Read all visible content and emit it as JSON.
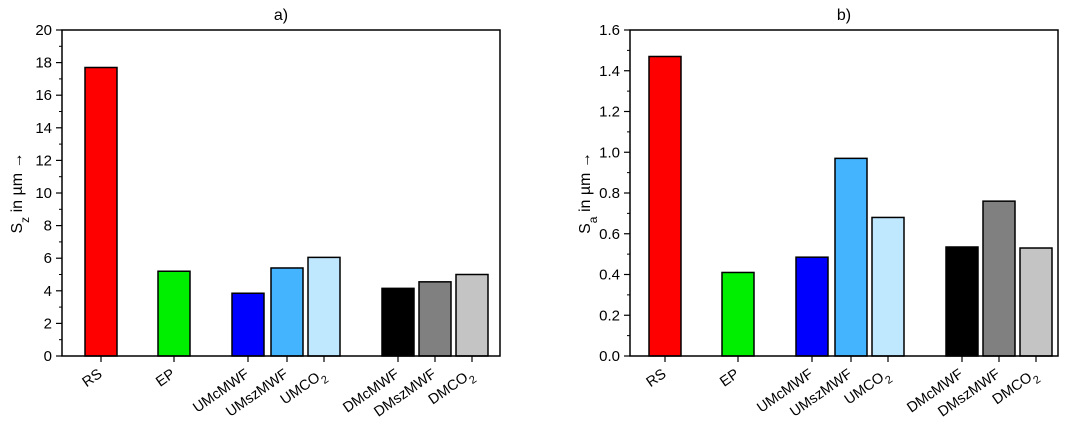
{
  "chart_data": [
    {
      "type": "bar",
      "title": "a)",
      "ylabel": {
        "main": "S",
        "sub": "z",
        "rest": " in µm →"
      },
      "ylim": [
        0,
        20
      ],
      "yticks": [
        "0",
        "2",
        "4",
        "6",
        "8",
        "10",
        "12",
        "14",
        "16",
        "18",
        "20"
      ],
      "grid": false,
      "categories": [
        {
          "main": "RS",
          "sub": ""
        },
        {
          "main": "EP",
          "sub": ""
        },
        {
          "main": "UMcMWF",
          "sub": ""
        },
        {
          "main": "UMszMWF",
          "sub": ""
        },
        {
          "main": "UMCO",
          "sub": "2"
        },
        {
          "main": "DMcMWF",
          "sub": ""
        },
        {
          "main": "DMszMWF",
          "sub": ""
        },
        {
          "main": "DMCO",
          "sub": "2"
        }
      ],
      "values": [
        17.7,
        5.2,
        3.85,
        5.4,
        6.05,
        4.15,
        4.55,
        5.0
      ],
      "colors": [
        "#ff0000",
        "#00ee00",
        "#0000ff",
        "#44b4ff",
        "#bfe8ff",
        "#000000",
        "#808080",
        "#c4c4c4"
      ]
    },
    {
      "type": "bar",
      "title": "b)",
      "ylabel": {
        "main": "S",
        "sub": "a",
        "rest": " in µm →"
      },
      "ylim": [
        0,
        1.6
      ],
      "yticks": [
        "0.0",
        "0.2",
        "0.4",
        "0.6",
        "0.8",
        "1.0",
        "1.2",
        "1.4",
        "1.6"
      ],
      "grid": false,
      "categories": [
        {
          "main": "RS",
          "sub": ""
        },
        {
          "main": "EP",
          "sub": ""
        },
        {
          "main": "UMcMWF",
          "sub": ""
        },
        {
          "main": "UMszMWF",
          "sub": ""
        },
        {
          "main": "UMCO",
          "sub": "2"
        },
        {
          "main": "DMcMWF",
          "sub": ""
        },
        {
          "main": "DMszMWF",
          "sub": ""
        },
        {
          "main": "DMCO",
          "sub": "2"
        }
      ],
      "values": [
        1.47,
        0.41,
        0.485,
        0.97,
        0.68,
        0.535,
        0.76,
        0.53
      ],
      "colors": [
        "#ff0000",
        "#00ee00",
        "#0000ff",
        "#44b4ff",
        "#bfe8ff",
        "#000000",
        "#808080",
        "#c4c4c4"
      ]
    }
  ]
}
